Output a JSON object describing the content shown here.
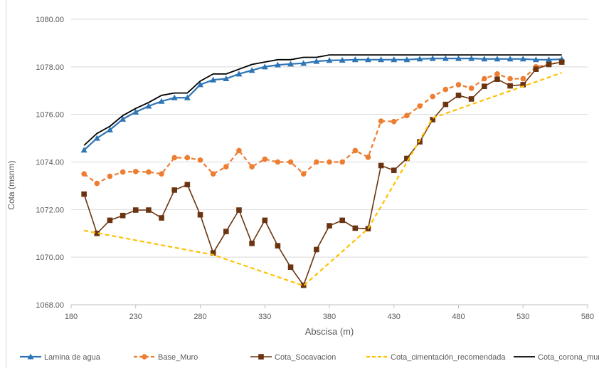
{
  "chart_data": {
    "type": "line",
    "title": "",
    "xlabel": "Abscisa (m)",
    "ylabel": "Cota (msnm)",
    "xlim": [
      180,
      580
    ],
    "ylim": [
      1068,
      1080
    ],
    "x_ticks": [
      180,
      230,
      280,
      330,
      380,
      430,
      480,
      530,
      580
    ],
    "y_ticks": [
      1068,
      1070,
      1072,
      1074,
      1076,
      1078,
      1080
    ],
    "x_tick_labels": [
      "180",
      "230",
      "280",
      "330",
      "380",
      "430",
      "480",
      "530",
      "580"
    ],
    "y_tick_labels": [
      "1068.00",
      "1070.00",
      "1072.00",
      "1074.00",
      "1076.00",
      "1078.00",
      "1080.00"
    ],
    "grid": {
      "horizontal": true,
      "vertical": false
    },
    "legend_position": "bottom",
    "series": [
      {
        "name": "Lamina de agua",
        "color": "#2e75b6",
        "marker": "triangle",
        "dash": "solid",
        "x": [
          190,
          200,
          210,
          220,
          230,
          240,
          250,
          260,
          270,
          280,
          290,
          300,
          310,
          320,
          330,
          340,
          350,
          360,
          370,
          380,
          390,
          400,
          410,
          420,
          430,
          440,
          450,
          460,
          470,
          480,
          490,
          500,
          510,
          520,
          530,
          540,
          550,
          560
        ],
        "y": [
          1074.5,
          1075.0,
          1075.35,
          1075.8,
          1076.1,
          1076.35,
          1076.55,
          1076.7,
          1076.7,
          1077.25,
          1077.45,
          1077.5,
          1077.7,
          1077.85,
          1078.0,
          1078.08,
          1078.12,
          1078.15,
          1078.23,
          1078.27,
          1078.28,
          1078.3,
          1078.3,
          1078.3,
          1078.3,
          1078.3,
          1078.33,
          1078.35,
          1078.35,
          1078.35,
          1078.35,
          1078.33,
          1078.33,
          1078.33,
          1078.33,
          1078.3,
          1078.3,
          1078.32
        ]
      },
      {
        "name": "Base_Muro",
        "color": "#ed7d31",
        "marker": "circle",
        "dash": "dashed",
        "x": [
          190,
          200,
          210,
          220,
          230,
          240,
          250,
          260,
          270,
          280,
          290,
          300,
          310,
          320,
          330,
          340,
          350,
          360,
          370,
          380,
          390,
          400,
          410,
          420,
          430,
          440,
          450,
          460,
          470,
          480,
          490,
          500,
          510,
          520,
          530,
          540,
          550,
          560
        ],
        "y": [
          1073.5,
          1073.1,
          1073.4,
          1073.58,
          1073.6,
          1073.58,
          1073.5,
          1074.18,
          1074.18,
          1074.08,
          1073.5,
          1073.8,
          1074.48,
          1073.8,
          1074.12,
          1074.0,
          1074.0,
          1073.5,
          1074.0,
          1074.0,
          1074.0,
          1074.48,
          1074.2,
          1075.72,
          1075.7,
          1075.95,
          1076.35,
          1076.75,
          1077.05,
          1077.25,
          1077.1,
          1077.5,
          1077.7,
          1077.5,
          1077.5,
          1078.0,
          1078.1,
          1078.2
        ]
      },
      {
        "name": "Cota_Socavacion",
        "color": "#6b3410",
        "marker": "square",
        "dash": "solid",
        "x": [
          190,
          200,
          210,
          220,
          230,
          240,
          250,
          260,
          270,
          280,
          290,
          300,
          310,
          320,
          330,
          340,
          350,
          360,
          370,
          380,
          390,
          400,
          410,
          420,
          430,
          440,
          450,
          460,
          470,
          480,
          490,
          500,
          510,
          520,
          530,
          540,
          550,
          560
        ],
        "y": [
          1072.65,
          1071.0,
          1071.55,
          1071.75,
          1071.98,
          1071.98,
          1071.65,
          1072.82,
          1073.05,
          1071.78,
          1070.18,
          1071.08,
          1071.98,
          1070.58,
          1071.55,
          1070.48,
          1069.58,
          1068.82,
          1070.32,
          1071.32,
          1071.55,
          1071.22,
          1071.2,
          1073.85,
          1073.65,
          1074.15,
          1074.85,
          1075.78,
          1076.42,
          1076.8,
          1076.65,
          1077.18,
          1077.48,
          1077.2,
          1077.25,
          1077.9,
          1078.1,
          1078.2
        ]
      },
      {
        "name": "Cota_cimentación_recomendada",
        "color": "#ffc000",
        "marker": "none",
        "dash": "dashed",
        "x": [
          190,
          290,
          360,
          410,
          460,
          560
        ],
        "y": [
          1071.12,
          1070.1,
          1068.8,
          1071.2,
          1075.85,
          1077.75
        ]
      },
      {
        "name": "Cota_corona_muro",
        "color": "#000000",
        "marker": "none",
        "dash": "solid",
        "x": [
          190,
          200,
          210,
          220,
          230,
          240,
          250,
          260,
          270,
          280,
          290,
          300,
          310,
          320,
          330,
          340,
          350,
          360,
          370,
          380,
          390,
          400,
          410,
          420,
          430,
          440,
          450,
          460,
          470,
          480,
          490,
          500,
          510,
          520,
          530,
          540,
          550,
          560
        ],
        "y": [
          1074.7,
          1075.2,
          1075.5,
          1075.95,
          1076.25,
          1076.5,
          1076.8,
          1076.9,
          1076.9,
          1077.4,
          1077.7,
          1077.7,
          1077.9,
          1078.1,
          1078.2,
          1078.3,
          1078.3,
          1078.4,
          1078.4,
          1078.5,
          1078.5,
          1078.5,
          1078.5,
          1078.5,
          1078.5,
          1078.5,
          1078.5,
          1078.5,
          1078.5,
          1078.5,
          1078.5,
          1078.5,
          1078.5,
          1078.5,
          1078.5,
          1078.5,
          1078.5,
          1078.5
        ]
      }
    ]
  }
}
